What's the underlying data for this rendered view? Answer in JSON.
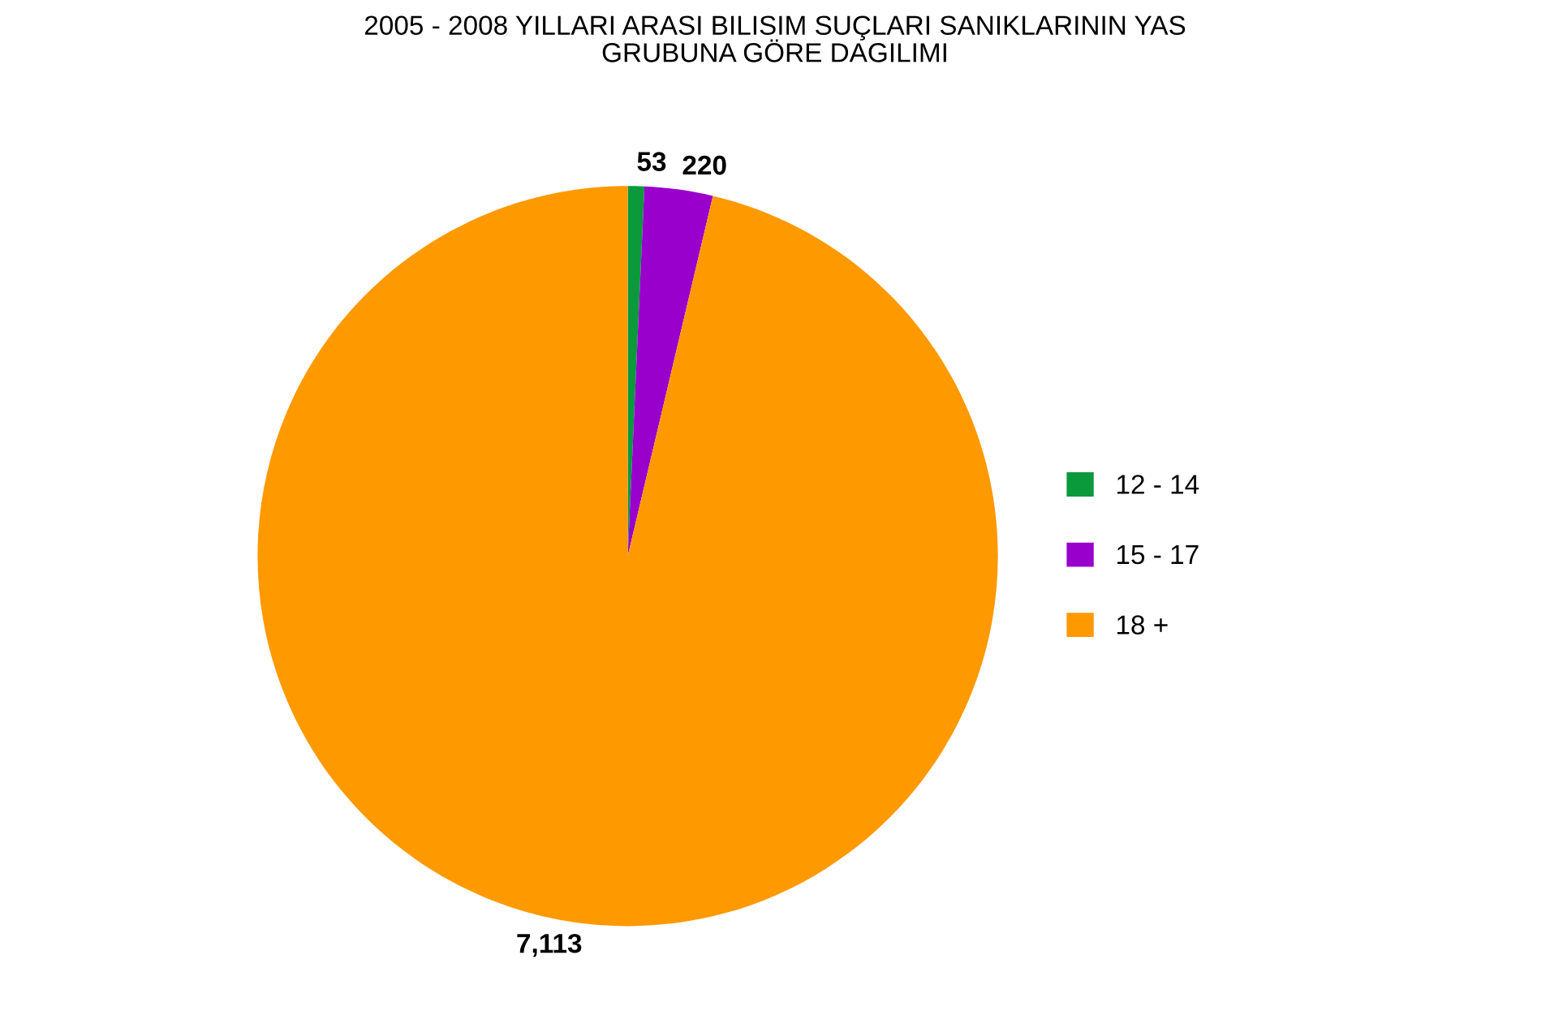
{
  "chart_data": {
    "type": "pie",
    "title": "2005 - 2008 YILLARI ARASI BILISIM SUÇLARI SANIKLARININ YAS\nGRUBUNA GÖRE DAGILIMI",
    "categories": [
      "12 - 14",
      "15 - 17",
      "18 +"
    ],
    "values": [
      53,
      220,
      7113
    ],
    "value_labels": [
      "53",
      "220",
      "7,113"
    ],
    "colors": [
      "#0a9a3c",
      "#9900cc",
      "#ff9900"
    ],
    "legend": "right"
  }
}
